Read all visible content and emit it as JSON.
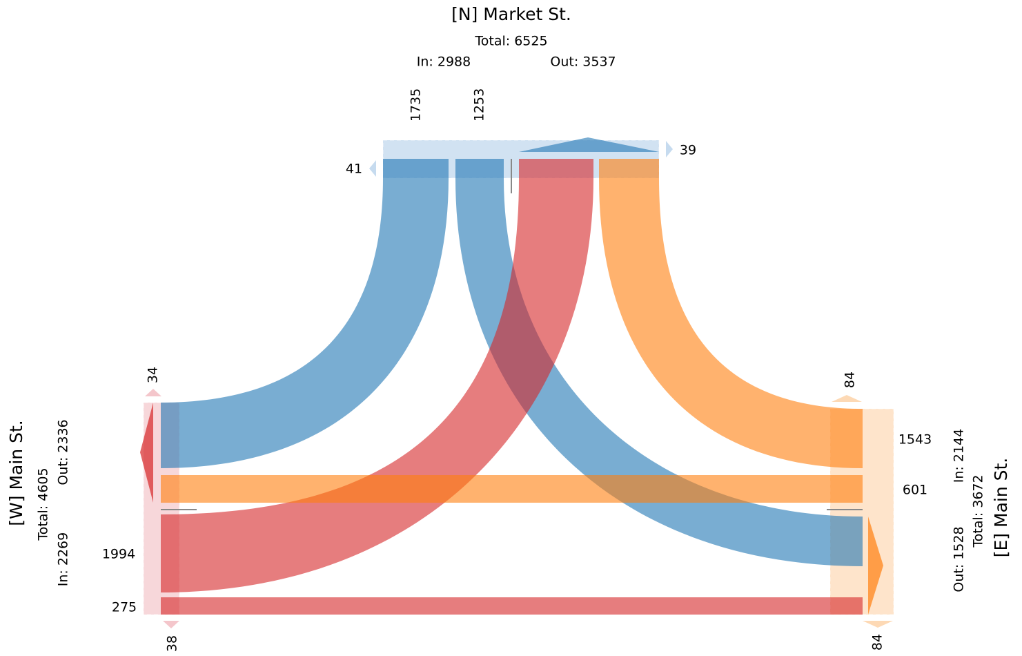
{
  "north": {
    "name": "[N] Market St.",
    "total": "Total: 6525",
    "in": "In: 2988",
    "out": "Out: 3537",
    "flows": [
      1735,
      1253
    ],
    "peds": [
      41,
      39
    ]
  },
  "west": {
    "name": "[W] Main St.",
    "total": "Total: 4605",
    "in": "In: 2269",
    "out": "Out: 2336",
    "flows": [
      1994,
      275
    ],
    "peds": [
      34,
      38
    ]
  },
  "east": {
    "name": "[E] Main St.",
    "total": "Total: 3672",
    "in": "In: 2144",
    "out": "Out: 1528",
    "flows": [
      1543,
      601
    ],
    "peds": [
      84,
      84
    ]
  }
}
